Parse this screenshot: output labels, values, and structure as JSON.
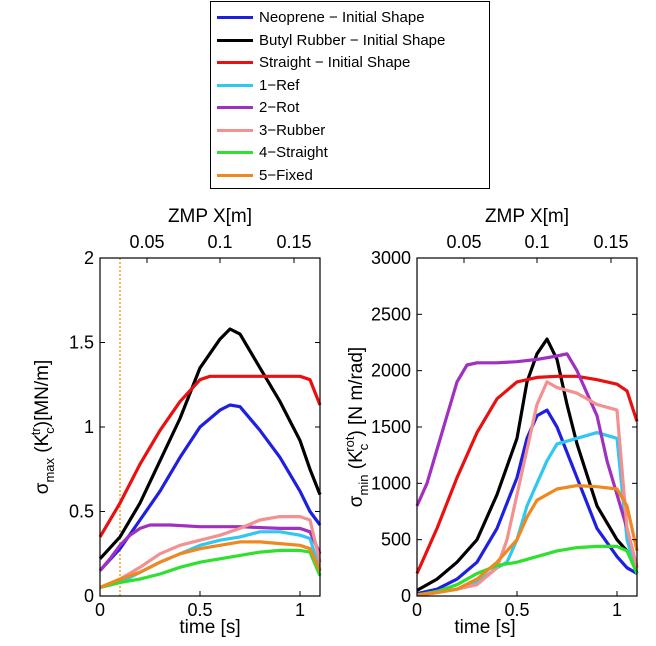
{
  "legend": {
    "items": [
      {
        "label": "Neoprene − Initial Shape",
        "color": "#1f1fe0"
      },
      {
        "label": "Butyl Rubber − Initial Shape",
        "color": "#000000"
      },
      {
        "label": "Straight − Initial Shape",
        "color": "#e81010"
      },
      {
        "label": "1−Ref",
        "color": "#30c8f0"
      },
      {
        "label": "2−Rot",
        "color": "#a030c0"
      },
      {
        "label": "3−Rubber",
        "color": "#f49090"
      },
      {
        "label": "4−Straight",
        "color": "#30e030"
      },
      {
        "label": "5−Fixed",
        "color": "#f08820"
      }
    ]
  },
  "chart_data": [
    {
      "type": "line",
      "ylabel": "σmax (Kc tr)[MN/m]",
      "ylabel_parts": {
        "sigma": "σ",
        "sigma_sub": "max",
        "open": " (K",
        "k_sub": "c",
        "k_sup": "tr",
        "close": ")[MN/m]"
      },
      "xlabel": "time [s]",
      "top_xlabel": "ZMP X[m]",
      "xlim": [
        0,
        1.1
      ],
      "ylim": [
        0,
        2
      ],
      "xticks": [
        0,
        0.5,
        1
      ],
      "xtick_labels": [
        "0",
        "0.5",
        "1"
      ],
      "yticks": [
        0,
        0.5,
        1,
        1.5,
        2
      ],
      "ytick_labels": [
        "0",
        "0.5",
        "1",
        "1.5",
        "2"
      ],
      "top_ticks_time": [
        0.235,
        0.6,
        0.97
      ],
      "top_tick_labels": [
        "0.05",
        "0.1",
        "0.15"
      ],
      "vline_x": 0.1,
      "vline_color": "#f0a020",
      "series": [
        {
          "name": "Neoprene − Initial Shape",
          "color": "#1f1fe0",
          "x": [
            0,
            0.1,
            0.2,
            0.3,
            0.4,
            0.5,
            0.6,
            0.65,
            0.7,
            0.8,
            0.9,
            1.0,
            1.05,
            1.1
          ],
          "y": [
            0.15,
            0.28,
            0.45,
            0.62,
            0.82,
            1.0,
            1.1,
            1.13,
            1.12,
            0.98,
            0.82,
            0.62,
            0.5,
            0.42
          ]
        },
        {
          "name": "Butyl Rubber − Initial Shape",
          "color": "#000000",
          "x": [
            0,
            0.1,
            0.2,
            0.3,
            0.4,
            0.5,
            0.6,
            0.65,
            0.7,
            0.8,
            0.9,
            1.0,
            1.05,
            1.1
          ],
          "y": [
            0.22,
            0.35,
            0.55,
            0.8,
            1.05,
            1.35,
            1.52,
            1.58,
            1.55,
            1.35,
            1.15,
            0.92,
            0.75,
            0.6
          ]
        },
        {
          "name": "Straight − Initial Shape",
          "color": "#e81010",
          "x": [
            0,
            0.1,
            0.2,
            0.3,
            0.4,
            0.5,
            0.55,
            0.7,
            0.8,
            0.9,
            1.0,
            1.05,
            1.1
          ],
          "y": [
            0.35,
            0.55,
            0.78,
            0.98,
            1.15,
            1.28,
            1.3,
            1.3,
            1.3,
            1.3,
            1.3,
            1.28,
            1.13
          ]
        },
        {
          "name": "1−Ref",
          "color": "#30c8f0",
          "x": [
            0,
            0.1,
            0.2,
            0.3,
            0.4,
            0.5,
            0.6,
            0.7,
            0.8,
            0.9,
            1.0,
            1.05,
            1.1
          ],
          "y": [
            0.05,
            0.08,
            0.14,
            0.2,
            0.25,
            0.3,
            0.33,
            0.35,
            0.38,
            0.38,
            0.36,
            0.34,
            0.15
          ]
        },
        {
          "name": "2−Rot",
          "color": "#a030c0",
          "x": [
            0,
            0.05,
            0.1,
            0.15,
            0.2,
            0.25,
            0.35,
            0.5,
            0.7,
            0.9,
            1.0,
            1.05,
            1.1
          ],
          "y": [
            0.15,
            0.22,
            0.3,
            0.36,
            0.4,
            0.42,
            0.42,
            0.41,
            0.41,
            0.4,
            0.4,
            0.38,
            0.25
          ]
        },
        {
          "name": "3−Rubber",
          "color": "#f49090",
          "x": [
            0,
            0.1,
            0.2,
            0.3,
            0.4,
            0.5,
            0.6,
            0.7,
            0.8,
            0.9,
            1.0,
            1.05,
            1.1
          ],
          "y": [
            0.05,
            0.1,
            0.17,
            0.25,
            0.3,
            0.33,
            0.36,
            0.4,
            0.45,
            0.47,
            0.47,
            0.45,
            0.2
          ]
        },
        {
          "name": "4−Straight",
          "color": "#30e030",
          "x": [
            0,
            0.1,
            0.2,
            0.3,
            0.4,
            0.5,
            0.6,
            0.7,
            0.8,
            0.9,
            1.0,
            1.05,
            1.1
          ],
          "y": [
            0.05,
            0.08,
            0.1,
            0.13,
            0.17,
            0.2,
            0.22,
            0.24,
            0.26,
            0.27,
            0.27,
            0.26,
            0.12
          ]
        },
        {
          "name": "5−Fixed",
          "color": "#f08820",
          "x": [
            0,
            0.1,
            0.2,
            0.3,
            0.4,
            0.5,
            0.6,
            0.7,
            0.8,
            0.9,
            1.0,
            1.05,
            1.1
          ],
          "y": [
            0.05,
            0.1,
            0.14,
            0.2,
            0.25,
            0.28,
            0.3,
            0.32,
            0.32,
            0.31,
            0.3,
            0.28,
            0.15
          ]
        }
      ]
    },
    {
      "type": "line",
      "ylabel": "σmin (Kc rot) [N m/rad]",
      "ylabel_parts": {
        "sigma": "σ",
        "sigma_sub": "min",
        "open": " (K",
        "k_sub": "c",
        "k_sup": "rot",
        "close": ") [N m/rad]"
      },
      "xlabel": "time [s]",
      "top_xlabel": "ZMP X[m]",
      "xlim": [
        0,
        1.1
      ],
      "ylim": [
        0,
        3000
      ],
      "xticks": [
        0,
        0.5,
        1
      ],
      "xtick_labels": [
        "0",
        "0.5",
        "1"
      ],
      "yticks": [
        0,
        500,
        1000,
        1500,
        2000,
        2500,
        3000
      ],
      "ytick_labels": [
        "0",
        "500",
        "1000",
        "1500",
        "2000",
        "2500",
        "3000"
      ],
      "top_ticks_time": [
        0.235,
        0.6,
        0.97
      ],
      "top_tick_labels": [
        "0.05",
        "0.1",
        "0.15"
      ],
      "series": [
        {
          "name": "Neoprene − Initial Shape",
          "color": "#1f1fe0",
          "x": [
            0,
            0.1,
            0.2,
            0.3,
            0.4,
            0.5,
            0.55,
            0.6,
            0.65,
            0.7,
            0.8,
            0.9,
            1.0,
            1.05,
            1.1
          ],
          "y": [
            20,
            60,
            150,
            300,
            600,
            1050,
            1400,
            1600,
            1650,
            1500,
            1050,
            600,
            350,
            250,
            200
          ]
        },
        {
          "name": "Butyl Rubber − Initial Shape",
          "color": "#000000",
          "x": [
            0,
            0.1,
            0.2,
            0.3,
            0.4,
            0.5,
            0.55,
            0.6,
            0.65,
            0.7,
            0.75,
            0.8,
            0.9,
            1.0,
            1.05,
            1.1
          ],
          "y": [
            50,
            150,
            300,
            500,
            900,
            1400,
            1900,
            2150,
            2280,
            2100,
            1700,
            1350,
            800,
            500,
            400,
            250
          ]
        },
        {
          "name": "Straight − Initial Shape",
          "color": "#e81010",
          "x": [
            0,
            0.1,
            0.2,
            0.3,
            0.4,
            0.5,
            0.6,
            0.7,
            0.8,
            0.9,
            1.0,
            1.05,
            1.1
          ],
          "y": [
            200,
            600,
            1050,
            1450,
            1750,
            1900,
            1940,
            1950,
            1950,
            1920,
            1880,
            1820,
            1550
          ]
        },
        {
          "name": "1−Ref",
          "color": "#30c8f0",
          "x": [
            0,
            0.1,
            0.2,
            0.3,
            0.4,
            0.45,
            0.5,
            0.55,
            0.6,
            0.65,
            0.7,
            0.8,
            0.9,
            1.0,
            1.05,
            1.1
          ],
          "y": [
            10,
            30,
            60,
            120,
            250,
            300,
            500,
            800,
            1000,
            1200,
            1350,
            1400,
            1450,
            1400,
            500,
            200
          ]
        },
        {
          "name": "2−Rot",
          "color": "#a030c0",
          "x": [
            0,
            0.05,
            0.1,
            0.15,
            0.2,
            0.25,
            0.3,
            0.4,
            0.5,
            0.6,
            0.7,
            0.75,
            0.8,
            0.9,
            0.95,
            1.0,
            1.05,
            1.1
          ],
          "y": [
            800,
            1000,
            1300,
            1600,
            1900,
            2050,
            2070,
            2070,
            2080,
            2100,
            2130,
            2150,
            2000,
            1600,
            1200,
            900,
            600,
            250
          ]
        },
        {
          "name": "3−Rubber",
          "color": "#f49090",
          "x": [
            0,
            0.1,
            0.2,
            0.3,
            0.4,
            0.45,
            0.5,
            0.55,
            0.6,
            0.65,
            0.7,
            0.8,
            0.9,
            1.0,
            1.05,
            1.1
          ],
          "y": [
            10,
            30,
            60,
            100,
            250,
            500,
            900,
            1300,
            1700,
            1900,
            1850,
            1800,
            1700,
            1650,
            600,
            250
          ]
        },
        {
          "name": "4−Straight",
          "color": "#30e030",
          "x": [
            0,
            0.1,
            0.2,
            0.3,
            0.4,
            0.5,
            0.6,
            0.7,
            0.8,
            0.9,
            1.0,
            1.05,
            1.1
          ],
          "y": [
            10,
            40,
            100,
            200,
            270,
            300,
            350,
            400,
            430,
            440,
            440,
            400,
            200
          ]
        },
        {
          "name": "5−Fixed",
          "color": "#f08820",
          "x": [
            0,
            0.1,
            0.2,
            0.3,
            0.4,
            0.5,
            0.55,
            0.6,
            0.7,
            0.8,
            0.9,
            1.0,
            1.05,
            1.1
          ],
          "y": [
            10,
            30,
            60,
            150,
            300,
            500,
            700,
            850,
            950,
            980,
            970,
            950,
            800,
            400
          ]
        }
      ]
    }
  ]
}
